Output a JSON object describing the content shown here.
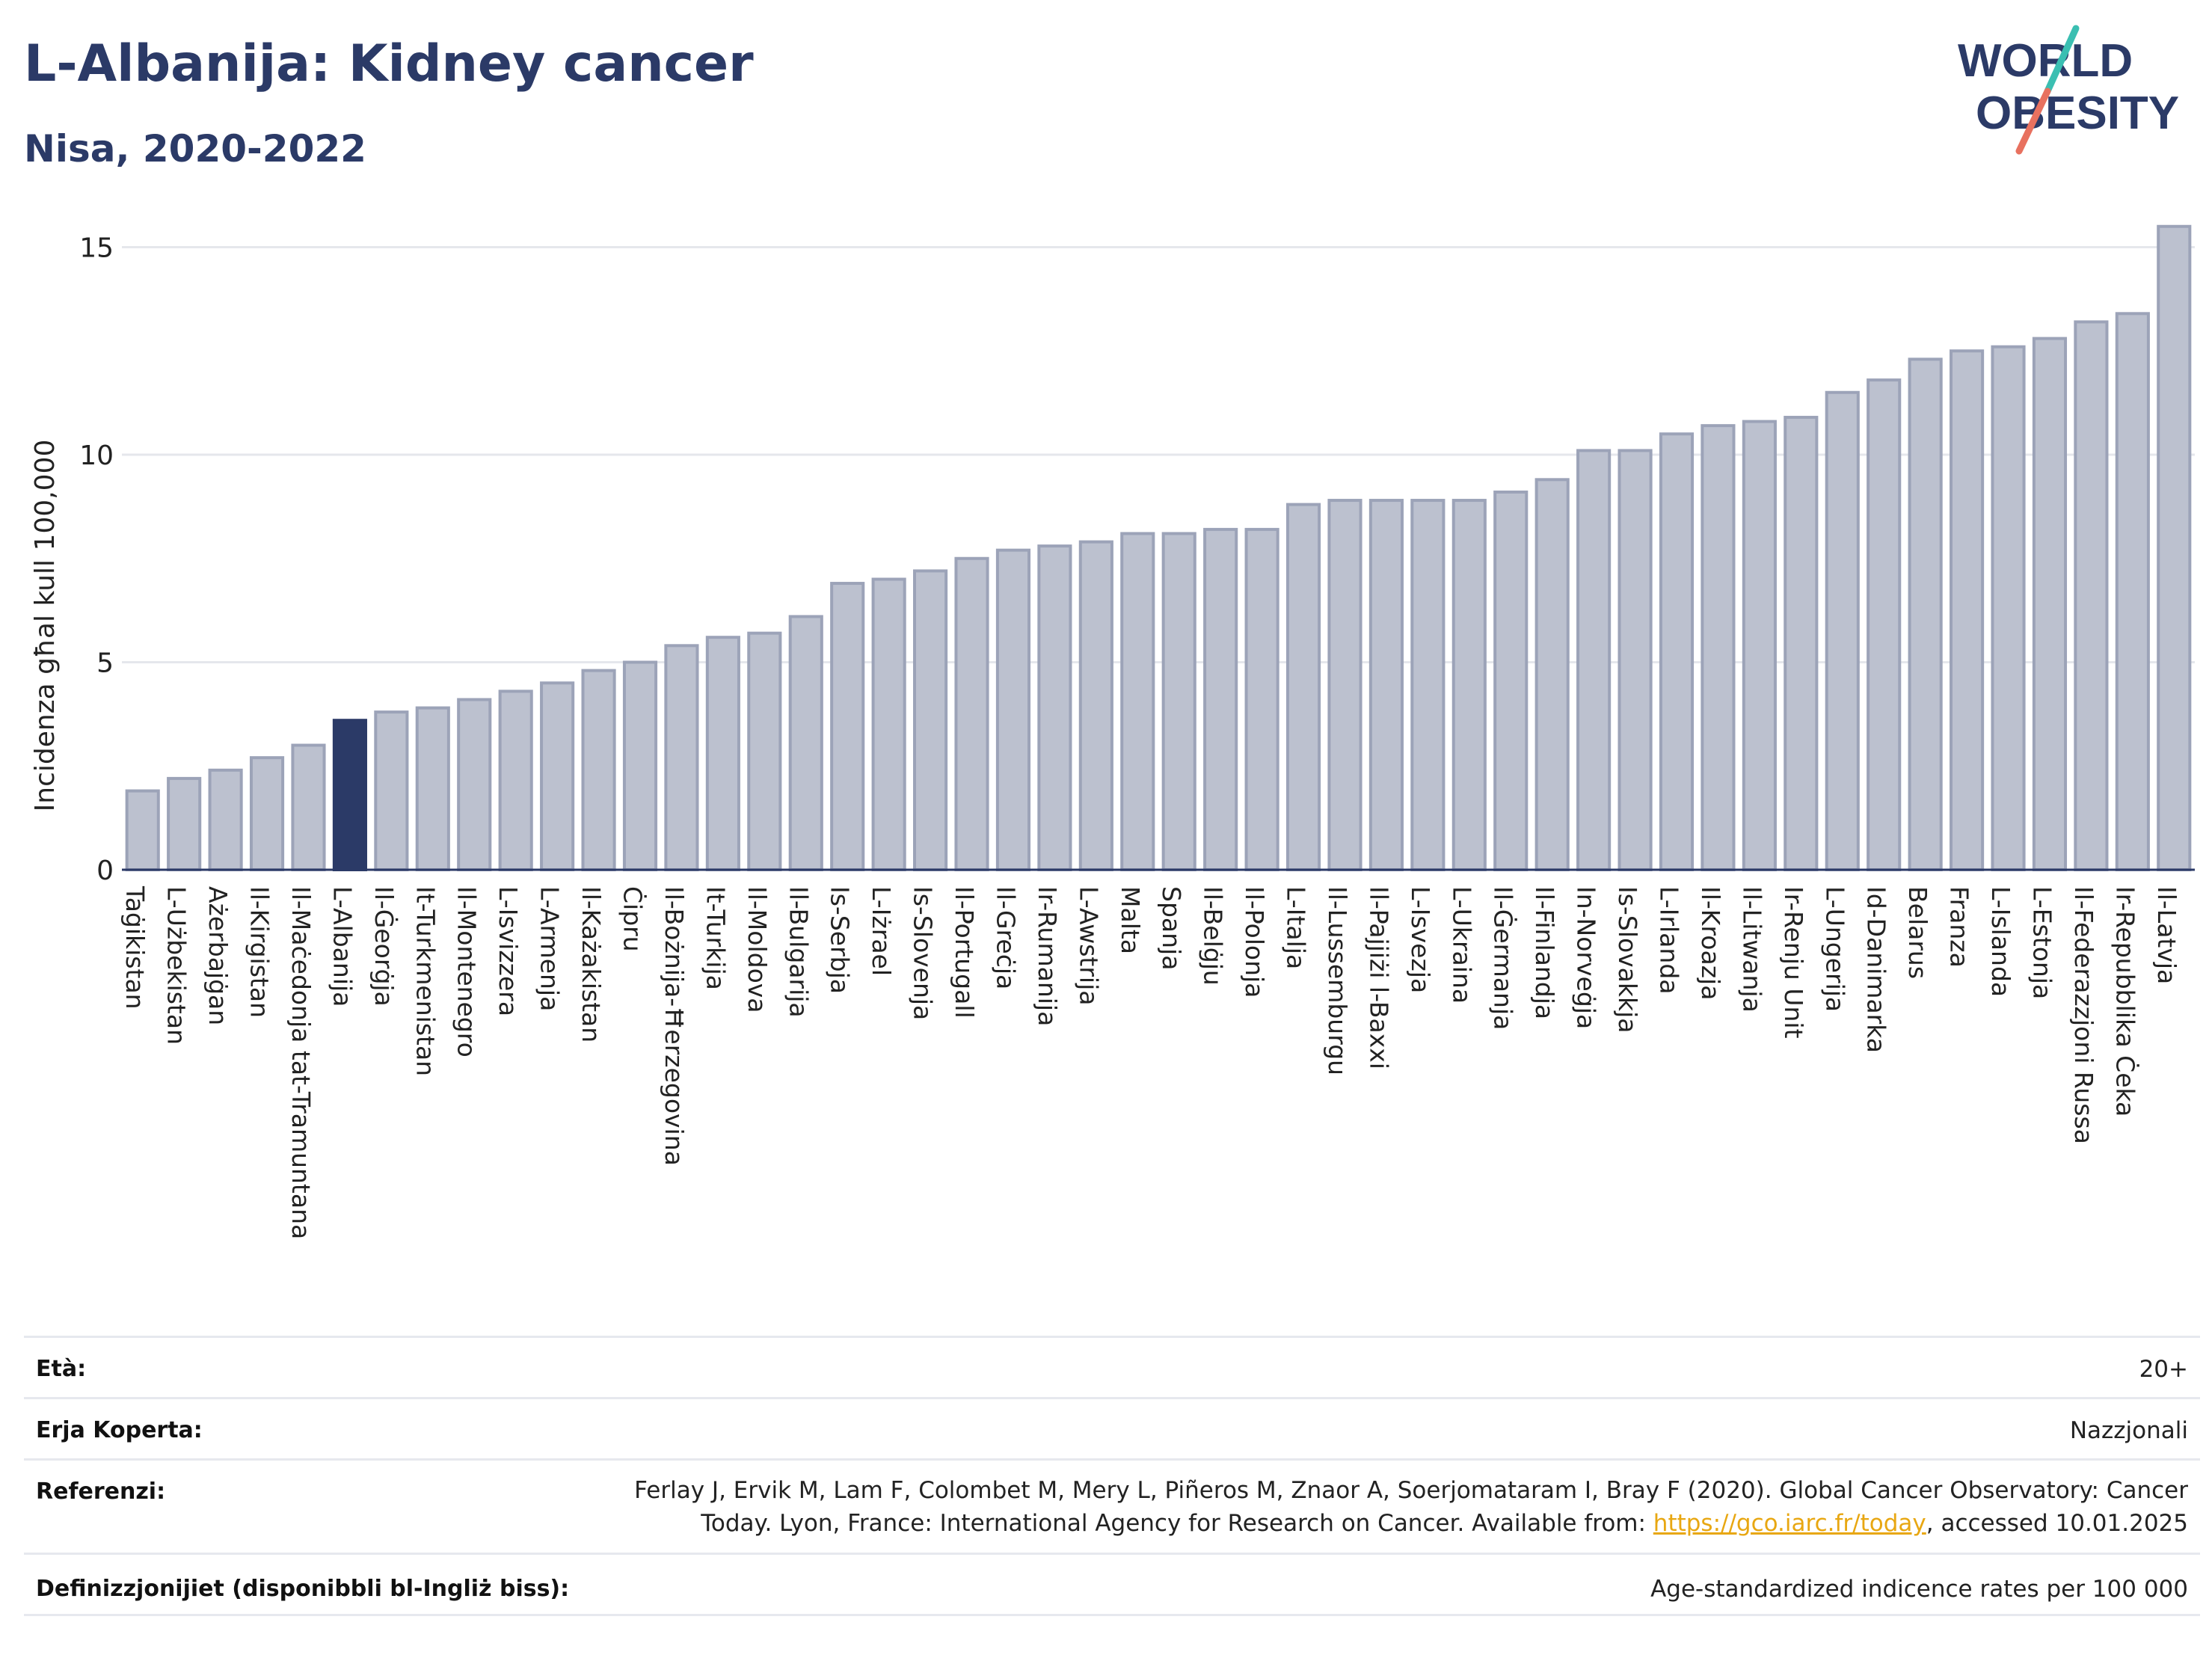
{
  "title": "L-Albanija: Kidney cancer",
  "subtitle": "Nisa, 2020-2022",
  "logo": {
    "line1": "WORLD",
    "line2": "OBESITY",
    "colors": {
      "text": "#2b3a67",
      "slash_teal": "#3bbfb2",
      "slash_coral": "#e8715f"
    }
  },
  "colors": {
    "bar": "#bcc1cf",
    "bar_border": "#9ca3b8",
    "highlight": "#2b3a67",
    "grid": "#e5e7ec",
    "axis": "#2b3a67"
  },
  "chart_data": {
    "type": "bar",
    "ylabel": "Incidenza għal kull 100,000",
    "xlabel": "",
    "ylim": [
      0,
      16
    ],
    "yticks": [
      0,
      5,
      10,
      15
    ],
    "grid": true,
    "highlight": "L-Albanija",
    "categories": [
      "Taġikistan",
      "L-Użbekistan",
      "Ażerbajġan",
      "Il-Kirgistan",
      "Il-Maċedonja tat-Tramuntana",
      "L-Albanija",
      "Il-Ġeorġja",
      "It-Turkmenistan",
      "Il-Montenegro",
      "L-Isvizzera",
      "L-Armenja",
      "Il-Każakistan",
      "Ċipru",
      "Il-Bożnija-Ħerzegovina",
      "It-Turkija",
      "Il-Moldova",
      "Il-Bulgarija",
      "Is-Serbja",
      "L-Iżrael",
      "Is-Slovenja",
      "Il-Portugall",
      "Il-Greċja",
      "Ir-Rumanija",
      "L-Awstrija",
      "Malta",
      "Spanja",
      "Il-Belġju",
      "Il-Polonja",
      "L-Italja",
      "Il-Lussemburgu",
      "Il-Pajjiżi l-Baxxi",
      "L-Isvezja",
      "L-Ukraina",
      "Il-Ġermanja",
      "Il-Finlandja",
      "In-Norveġja",
      "Is-Slovakkja",
      "L-Irlanda",
      "Il-Kroazja",
      "Il-Litwanja",
      "Ir-Renju Unit",
      "L-Ungerija",
      "Id-Danimarka",
      "Belarus",
      "Franza",
      "L-Islanda",
      "L-Estonja",
      "Il-Federazzjoni Russa",
      "Ir-Repubblika Ċeka",
      "Il-Latvja"
    ],
    "values": [
      1.9,
      2.2,
      2.4,
      2.7,
      3.0,
      3.6,
      3.8,
      3.9,
      4.1,
      4.3,
      4.5,
      4.8,
      5.0,
      5.4,
      5.6,
      5.7,
      6.1,
      6.9,
      7.0,
      7.2,
      7.5,
      7.7,
      7.8,
      7.9,
      8.1,
      8.1,
      8.2,
      8.2,
      8.8,
      8.9,
      8.9,
      8.9,
      8.9,
      9.1,
      9.4,
      10.1,
      10.1,
      10.5,
      10.7,
      10.8,
      10.9,
      11.5,
      11.8,
      12.3,
      12.5,
      12.6,
      12.8,
      13.2,
      13.4,
      15.5
    ]
  },
  "meta": {
    "age": {
      "label": "Età:",
      "value": "20+"
    },
    "coverage": {
      "label": "Erja Koperta:",
      "value": "Nazzjonali"
    },
    "references": {
      "label": "Referenzi:",
      "value_line1": "Ferlay J, Ervik M, Lam F, Colombet M, Mery L, Piñeros M, Znaor A, Soerjomataram I, Bray F (2020). Global Cancer Observatory: Cancer",
      "value_line2_prefix": "Today. Lyon, France: International Agency for Research on Cancer. Available from: ",
      "link_text": "https://gco.iarc.fr/today",
      "value_line2_suffix": ", accessed 10.01.2025"
    },
    "definitions": {
      "label": "Definizzjonijiet (disponibbli bl-Ingliż biss):",
      "value": "Age-standardized indicence rates per 100 000"
    }
  }
}
